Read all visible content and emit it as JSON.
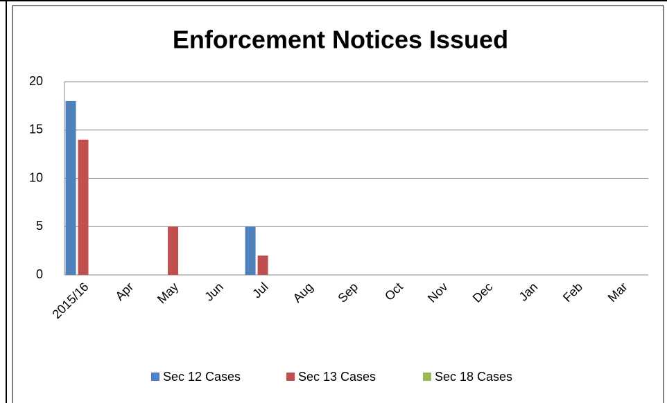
{
  "chart_data": {
    "type": "bar",
    "title": "Enforcement Notices Issued",
    "categories": [
      "2015/16",
      "Apr",
      "May",
      "Jun",
      "Jul",
      "Aug",
      "Sep",
      "Oct",
      "Nov",
      "Dec",
      "Jan",
      "Feb",
      "Mar"
    ],
    "series": [
      {
        "name": "Sec 12 Cases",
        "color": "#4f81bd",
        "values": [
          18,
          0,
          0,
          0,
          5,
          0,
          0,
          0,
          0,
          0,
          0,
          0,
          0
        ]
      },
      {
        "name": "Sec 13 Cases",
        "color": "#c0504d",
        "values": [
          14,
          0,
          5,
          0,
          2,
          0,
          0,
          0,
          0,
          0,
          0,
          0,
          0
        ]
      },
      {
        "name": "Sec 18 Cases",
        "color": "#9bbb59",
        "values": [
          0,
          0,
          0,
          0,
          0,
          0,
          0,
          0,
          0,
          0,
          0,
          0,
          0
        ]
      }
    ],
    "ylim": [
      0,
      20
    ],
    "yticks": [
      0,
      5,
      10,
      15,
      20
    ],
    "grid": true,
    "legend": "bottom"
  }
}
